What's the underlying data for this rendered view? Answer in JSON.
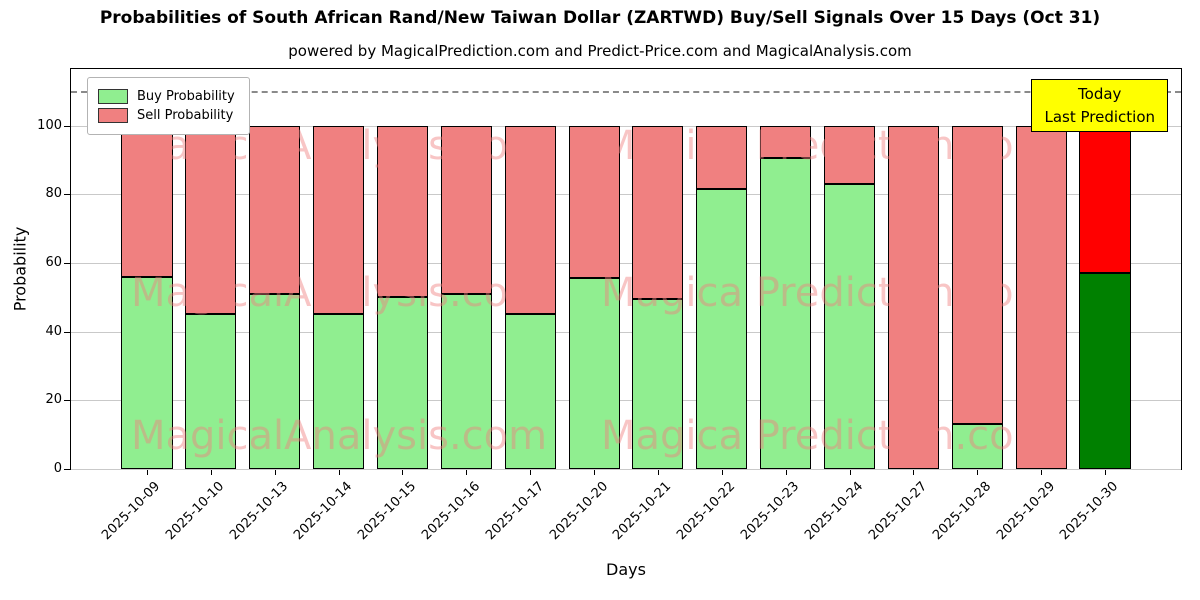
{
  "annotation": {
    "line1": "Today",
    "line2": "Last Prediction",
    "bg_color": "#ffff00"
  },
  "watermark": {
    "texts": [
      "MagicalAnalysis.com",
      "Magica Prediction.com"
    ],
    "color": "#f08080"
  },
  "chart_data": {
    "type": "bar",
    "stacked": true,
    "title": "Probabilities of South African Rand/New Taiwan Dollar (ZARTWD) Buy/Sell Signals Over 15 Days (Oct 31)",
    "subtitle": "powered by MagicalPrediction.com and Predict-Price.com and MagicalAnalysis.com",
    "xlabel": "Days",
    "ylabel": "Probability",
    "yticks": [
      0,
      20,
      40,
      60,
      80,
      100
    ],
    "ylim": [
      0,
      116.5
    ],
    "dashed_guideline_y": 110,
    "grid": true,
    "legend_position": "upper left",
    "categories": [
      "2025-10-09",
      "2025-10-10",
      "2025-10-13",
      "2025-10-14",
      "2025-10-15",
      "2025-10-16",
      "2025-10-17",
      "2025-10-20",
      "2025-10-21",
      "2025-10-22",
      "2025-10-23",
      "2025-10-24",
      "2025-10-27",
      "2025-10-28",
      "2025-10-29",
      "2025-10-30"
    ],
    "series": [
      {
        "name": "Buy Probability",
        "color": "#90ee90",
        "values": [
          56,
          45,
          51,
          45,
          50,
          51,
          45,
          55.5,
          49.5,
          81.5,
          90.5,
          83,
          0,
          13,
          0,
          57
        ]
      },
      {
        "name": "Sell Probability",
        "color": "#f08080",
        "values": [
          44,
          55,
          49,
          55,
          50,
          49,
          55,
          44.5,
          50.5,
          18.5,
          9.5,
          17,
          100,
          87,
          100,
          43
        ]
      }
    ],
    "highlight": {
      "index": 15,
      "buy_color": "#008000",
      "sell_color": "#ff0000"
    }
  }
}
